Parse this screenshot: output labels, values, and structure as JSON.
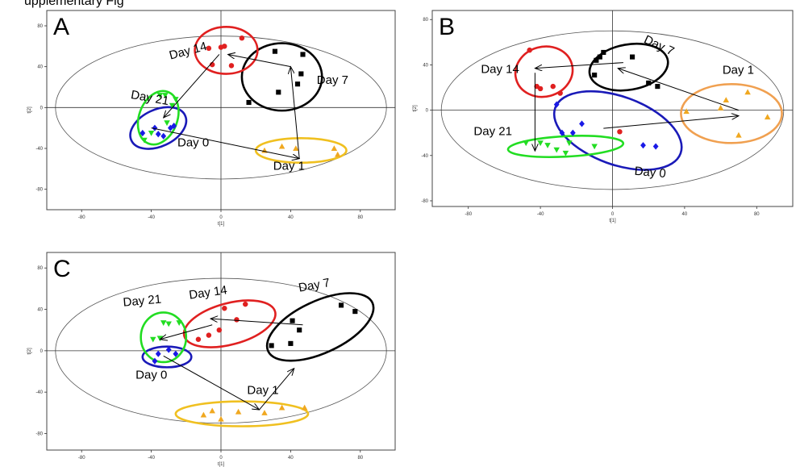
{
  "page": {
    "top_partial_text": "upplementary Fig"
  },
  "chart_data": [
    {
      "type": "scatter",
      "panel_label": "A",
      "xlabel": "t[1]",
      "ylabel": "t[2]",
      "xlim": [
        -100,
        100
      ],
      "ylim": [
        -100,
        95
      ],
      "xticks": [
        -80,
        -40,
        0,
        40,
        80
      ],
      "yticks": [
        -80,
        -40,
        0,
        40,
        80
      ],
      "grid": false,
      "series": [
        {
          "name": "Day 0",
          "color": "#1a1ae6",
          "marker": "diamond",
          "x": [
            -45,
            -38,
            -33,
            -29,
            -27,
            -36
          ],
          "y": [
            -25,
            -20,
            -28,
            -20,
            -18,
            -26
          ]
        },
        {
          "name": "Day 1",
          "color": "#f0a820",
          "marker": "triangle-up",
          "x": [
            25,
            35,
            43,
            65,
            67
          ],
          "y": [
            -42,
            -38,
            -40,
            -40,
            -46
          ]
        },
        {
          "name": "Day 7",
          "color": "#000000",
          "marker": "square",
          "x": [
            16,
            31,
            33,
            44,
            46,
            47
          ],
          "y": [
            5,
            55,
            15,
            23,
            33,
            52
          ]
        },
        {
          "name": "Day 14",
          "color": "#e02020",
          "marker": "circle",
          "x": [
            -7,
            -5,
            0,
            2,
            6,
            12
          ],
          "y": [
            58,
            42,
            59,
            60,
            41,
            68
          ]
        },
        {
          "name": "Day 21",
          "color": "#22dd22",
          "marker": "triangle-down",
          "x": [
            -44,
            -40,
            -35,
            -32,
            -31,
            -28,
            -26
          ],
          "y": [
            -32,
            -25,
            12,
            12,
            -15,
            2,
            8
          ]
        }
      ],
      "ellipses": [
        {
          "group": "Day 0",
          "cx": -36,
          "cy": -20,
          "rx": 17,
          "ry": 18,
          "angle": -25,
          "color": "#1a1ab8"
        },
        {
          "group": "Day 1",
          "cx": 46,
          "cy": -42,
          "rx": 26,
          "ry": 12,
          "angle": 0,
          "color": "#f0c020"
        },
        {
          "group": "Day 7",
          "cx": 35,
          "cy": 30,
          "rx": 23,
          "ry": 33,
          "angle": 0,
          "color": "#000000"
        },
        {
          "group": "Day 14",
          "cx": 3,
          "cy": 56,
          "rx": 18,
          "ry": 23,
          "angle": 0,
          "color": "#e02020"
        },
        {
          "group": "Day 21",
          "cx": -36,
          "cy": -10,
          "rx": 11,
          "ry": 27,
          "angle": 20,
          "color": "#22dd22"
        }
      ],
      "arrows": [
        {
          "from": [
            -40,
            -20
          ],
          "to": [
            45,
            -50
          ]
        },
        {
          "from": [
            45,
            -50
          ],
          "to": [
            40,
            40
          ]
        },
        {
          "from": [
            40,
            40
          ],
          "to": [
            4,
            52
          ]
        },
        {
          "from": [
            -1,
            52
          ],
          "to": [
            -33,
            -10
          ]
        }
      ],
      "annotations": [
        {
          "text": "Day 14",
          "x": -29,
          "y": 47,
          "angle": -15
        },
        {
          "text": "Day 7",
          "x": 55,
          "y": 23,
          "angle": 0
        },
        {
          "text": "Day 21",
          "x": -52,
          "y": 9,
          "angle": 10
        },
        {
          "text": "Day 0",
          "x": -25,
          "y": -38,
          "angle": 0
        },
        {
          "text": "Day 1",
          "x": 30,
          "y": -61,
          "angle": 0
        }
      ]
    },
    {
      "type": "scatter",
      "panel_label": "B",
      "xlabel": "t[1]",
      "ylabel": "t[2]",
      "xlim": [
        -100,
        100
      ],
      "ylim": [
        -85,
        88
      ],
      "xticks": [
        -80,
        -40,
        0,
        40,
        80
      ],
      "yticks": [
        -80,
        -40,
        0,
        40,
        80
      ],
      "grid": false,
      "series": [
        {
          "name": "Day 0",
          "color": "#1a1ae6",
          "marker": "diamond",
          "x": [
            -31,
            -28,
            -22,
            -17,
            17,
            24
          ],
          "y": [
            5,
            -20,
            -20,
            -12,
            -31,
            -32
          ]
        },
        {
          "name": "Day 1",
          "color": "#f0a820",
          "marker": "triangle-up",
          "x": [
            41,
            60,
            63,
            70,
            75,
            86
          ],
          "y": [
            -1,
            2,
            9,
            -22,
            16,
            -6
          ]
        },
        {
          "name": "Day 7",
          "color": "#000000",
          "marker": "square",
          "x": [
            -10,
            -9,
            -7,
            -5,
            11,
            20,
            25
          ],
          "y": [
            31,
            44,
            47,
            51,
            47,
            24,
            21
          ]
        },
        {
          "name": "Day 14",
          "color": "#e02020",
          "marker": "circle",
          "x": [
            -46,
            -42,
            -40,
            -33,
            -29,
            4
          ],
          "y": [
            53,
            21,
            19,
            21,
            15,
            -19
          ]
        },
        {
          "name": "Day 21",
          "color": "#22dd22",
          "marker": "triangle-down",
          "x": [
            -48,
            -40,
            -36,
            -31,
            -26,
            -24,
            -10
          ],
          "y": [
            -29,
            -29,
            -31,
            -35,
            -38,
            -29,
            -32
          ]
        }
      ],
      "ellipses": [
        {
          "group": "Day 0",
          "cx": 3,
          "cy": -18,
          "rx": 37,
          "ry": 30,
          "angle": 20,
          "color": "#1a1ab8"
        },
        {
          "group": "Day 1",
          "cx": 66,
          "cy": -3,
          "rx": 28,
          "ry": 26,
          "angle": 0,
          "color": "#f0a050"
        },
        {
          "group": "Day 7",
          "cx": 9,
          "cy": 38,
          "rx": 22,
          "ry": 20,
          "angle": -10,
          "color": "#000000"
        },
        {
          "group": "Day 14",
          "cx": -38,
          "cy": 34,
          "rx": 16,
          "ry": 22,
          "angle": -15,
          "color": "#e02020"
        },
        {
          "group": "Day 21",
          "cx": -26,
          "cy": -32,
          "rx": 32,
          "ry": 9,
          "angle": -3,
          "color": "#22dd22"
        }
      ],
      "arrows": [
        {
          "from": [
            -5,
            -16
          ],
          "to": [
            70,
            -5
          ]
        },
        {
          "from": [
            70,
            0
          ],
          "to": [
            3,
            37
          ]
        },
        {
          "from": [
            6,
            42
          ],
          "to": [
            -43,
            37
          ]
        },
        {
          "from": [
            -43,
            33
          ],
          "to": [
            -43,
            -36
          ]
        }
      ],
      "annotations": [
        {
          "text": "Day 7",
          "x": 17,
          "y": 60,
          "angle": 25
        },
        {
          "text": "Day 1",
          "x": 61,
          "y": 32,
          "angle": 0
        },
        {
          "text": "Day 14",
          "x": -73,
          "y": 33,
          "angle": 0
        },
        {
          "text": "Day 21",
          "x": -77,
          "y": -22,
          "angle": 0
        },
        {
          "text": "Day 0",
          "x": 12,
          "y": -57,
          "angle": 5
        }
      ]
    },
    {
      "type": "scatter",
      "panel_label": "C",
      "xlabel": "t[1]",
      "ylabel": "t[2]",
      "xlim": [
        -100,
        100
      ],
      "ylim": [
        -96,
        95
      ],
      "xticks": [
        -80,
        -40,
        0,
        40,
        80
      ],
      "yticks": [
        -80,
        -40,
        0,
        40,
        80
      ],
      "grid": false,
      "series": [
        {
          "name": "Day 0",
          "color": "#1a1ae6",
          "marker": "diamond",
          "x": [
            -38,
            -36,
            -30,
            -26
          ],
          "y": [
            -10,
            -3,
            1,
            -3
          ]
        },
        {
          "name": "Day 1",
          "color": "#f0a820",
          "marker": "triangle-up",
          "x": [
            -10,
            -5,
            0,
            10,
            25,
            35,
            48
          ],
          "y": [
            -62,
            -58,
            -66,
            -59,
            -60,
            -55,
            -55
          ]
        },
        {
          "name": "Day 7",
          "color": "#000000",
          "marker": "square",
          "x": [
            29,
            40,
            41,
            45,
            69,
            77
          ],
          "y": [
            5,
            7,
            29,
            20,
            44,
            38
          ]
        },
        {
          "name": "Day 14",
          "color": "#e02020",
          "marker": "circle",
          "x": [
            -13,
            -7,
            -1,
            2,
            9,
            14
          ],
          "y": [
            11,
            15,
            20,
            41,
            30,
            45
          ]
        },
        {
          "name": "Day 21",
          "color": "#22dd22",
          "marker": "triangle-down",
          "x": [
            -39,
            -35,
            -33,
            -30,
            -24
          ],
          "y": [
            11,
            12,
            27,
            26,
            27
          ]
        }
      ],
      "ellipses": [
        {
          "group": "Day 0",
          "cx": -31,
          "cy": -6,
          "rx": 14,
          "ry": 10,
          "angle": 0,
          "color": "#1a1ab8"
        },
        {
          "group": "Day 1",
          "cx": 12,
          "cy": -61,
          "rx": 38,
          "ry": 12,
          "angle": 0,
          "color": "#f0c020"
        },
        {
          "group": "Day 7",
          "cx": 57,
          "cy": 23,
          "rx": 33,
          "ry": 25,
          "angle": -25,
          "color": "#000000"
        },
        {
          "group": "Day 14",
          "cx": 5,
          "cy": 26,
          "rx": 27,
          "ry": 20,
          "angle": -15,
          "color": "#e02020"
        },
        {
          "group": "Day 21",
          "cx": -33,
          "cy": 13,
          "rx": 13,
          "ry": 24,
          "angle": 0,
          "color": "#22dd22"
        }
      ],
      "arrows": [
        {
          "from": [
            -33,
            -5
          ],
          "to": [
            22,
            -57
          ]
        },
        {
          "from": [
            22,
            -57
          ],
          "to": [
            42,
            -17
          ]
        },
        {
          "from": [
            47,
            25
          ],
          "to": [
            -6,
            31
          ]
        },
        {
          "from": [
            -5,
            25
          ],
          "to": [
            -35,
            11
          ]
        }
      ],
      "annotations": [
        {
          "text": "Day 21",
          "x": -56,
          "y": 43,
          "angle": -5
        },
        {
          "text": "Day 14",
          "x": -18,
          "y": 50,
          "angle": -8
        },
        {
          "text": "Day 7",
          "x": 45,
          "y": 57,
          "angle": -10
        },
        {
          "text": "Day 0",
          "x": -49,
          "y": -27,
          "angle": 0
        },
        {
          "text": "Day 1",
          "x": 15,
          "y": -42,
          "angle": 0
        }
      ]
    }
  ]
}
